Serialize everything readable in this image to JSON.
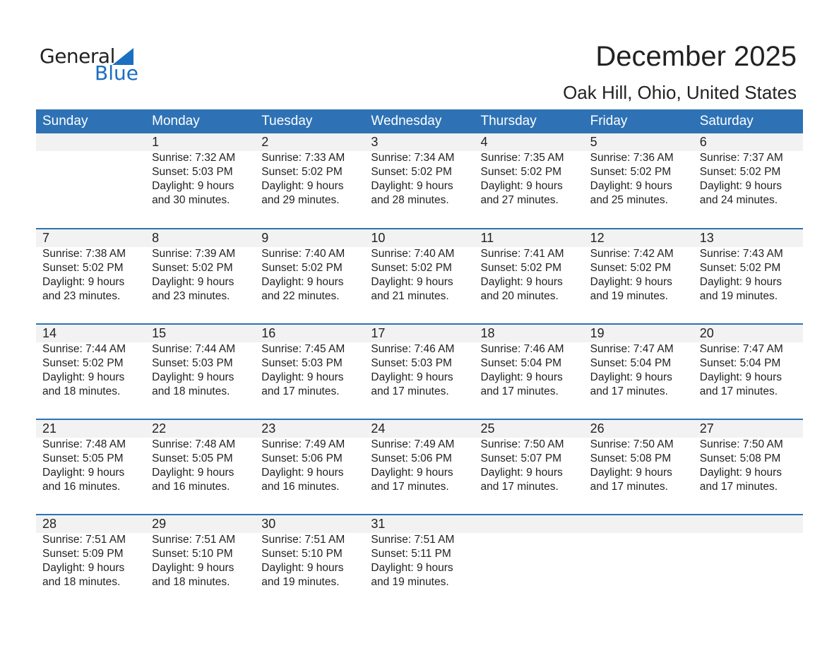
{
  "logo": {
    "line1": "General",
    "line2": "Blue"
  },
  "title": "December 2025",
  "subtitle": "Oak Hill, Ohio, United States",
  "colors": {
    "header": "#2e72b5",
    "logo": "#1a6fc0",
    "strip": "#f2f2f2"
  },
  "weekdays": [
    "Sunday",
    "Monday",
    "Tuesday",
    "Wednesday",
    "Thursday",
    "Friday",
    "Saturday"
  ],
  "weeks": [
    [
      null,
      {
        "day": "1",
        "sunrise": "Sunrise: 7:32 AM",
        "sunset": "Sunset: 5:03 PM",
        "daylight": "Daylight: 9 hours",
        "minutes": "and 30 minutes."
      },
      {
        "day": "2",
        "sunrise": "Sunrise: 7:33 AM",
        "sunset": "Sunset: 5:02 PM",
        "daylight": "Daylight: 9 hours",
        "minutes": "and 29 minutes."
      },
      {
        "day": "3",
        "sunrise": "Sunrise: 7:34 AM",
        "sunset": "Sunset: 5:02 PM",
        "daylight": "Daylight: 9 hours",
        "minutes": "and 28 minutes."
      },
      {
        "day": "4",
        "sunrise": "Sunrise: 7:35 AM",
        "sunset": "Sunset: 5:02 PM",
        "daylight": "Daylight: 9 hours",
        "minutes": "and 27 minutes."
      },
      {
        "day": "5",
        "sunrise": "Sunrise: 7:36 AM",
        "sunset": "Sunset: 5:02 PM",
        "daylight": "Daylight: 9 hours",
        "minutes": "and 25 minutes."
      },
      {
        "day": "6",
        "sunrise": "Sunrise: 7:37 AM",
        "sunset": "Sunset: 5:02 PM",
        "daylight": "Daylight: 9 hours",
        "minutes": "and 24 minutes."
      }
    ],
    [
      {
        "day": "7",
        "sunrise": "Sunrise: 7:38 AM",
        "sunset": "Sunset: 5:02 PM",
        "daylight": "Daylight: 9 hours",
        "minutes": "and 23 minutes."
      },
      {
        "day": "8",
        "sunrise": "Sunrise: 7:39 AM",
        "sunset": "Sunset: 5:02 PM",
        "daylight": "Daylight: 9 hours",
        "minutes": "and 23 minutes."
      },
      {
        "day": "9",
        "sunrise": "Sunrise: 7:40 AM",
        "sunset": "Sunset: 5:02 PM",
        "daylight": "Daylight: 9 hours",
        "minutes": "and 22 minutes."
      },
      {
        "day": "10",
        "sunrise": "Sunrise: 7:40 AM",
        "sunset": "Sunset: 5:02 PM",
        "daylight": "Daylight: 9 hours",
        "minutes": "and 21 minutes."
      },
      {
        "day": "11",
        "sunrise": "Sunrise: 7:41 AM",
        "sunset": "Sunset: 5:02 PM",
        "daylight": "Daylight: 9 hours",
        "minutes": "and 20 minutes."
      },
      {
        "day": "12",
        "sunrise": "Sunrise: 7:42 AM",
        "sunset": "Sunset: 5:02 PM",
        "daylight": "Daylight: 9 hours",
        "minutes": "and 19 minutes."
      },
      {
        "day": "13",
        "sunrise": "Sunrise: 7:43 AM",
        "sunset": "Sunset: 5:02 PM",
        "daylight": "Daylight: 9 hours",
        "minutes": "and 19 minutes."
      }
    ],
    [
      {
        "day": "14",
        "sunrise": "Sunrise: 7:44 AM",
        "sunset": "Sunset: 5:02 PM",
        "daylight": "Daylight: 9 hours",
        "minutes": "and 18 minutes."
      },
      {
        "day": "15",
        "sunrise": "Sunrise: 7:44 AM",
        "sunset": "Sunset: 5:03 PM",
        "daylight": "Daylight: 9 hours",
        "minutes": "and 18 minutes."
      },
      {
        "day": "16",
        "sunrise": "Sunrise: 7:45 AM",
        "sunset": "Sunset: 5:03 PM",
        "daylight": "Daylight: 9 hours",
        "minutes": "and 17 minutes."
      },
      {
        "day": "17",
        "sunrise": "Sunrise: 7:46 AM",
        "sunset": "Sunset: 5:03 PM",
        "daylight": "Daylight: 9 hours",
        "minutes": "and 17 minutes."
      },
      {
        "day": "18",
        "sunrise": "Sunrise: 7:46 AM",
        "sunset": "Sunset: 5:04 PM",
        "daylight": "Daylight: 9 hours",
        "minutes": "and 17 minutes."
      },
      {
        "day": "19",
        "sunrise": "Sunrise: 7:47 AM",
        "sunset": "Sunset: 5:04 PM",
        "daylight": "Daylight: 9 hours",
        "minutes": "and 17 minutes."
      },
      {
        "day": "20",
        "sunrise": "Sunrise: 7:47 AM",
        "sunset": "Sunset: 5:04 PM",
        "daylight": "Daylight: 9 hours",
        "minutes": "and 17 minutes."
      }
    ],
    [
      {
        "day": "21",
        "sunrise": "Sunrise: 7:48 AM",
        "sunset": "Sunset: 5:05 PM",
        "daylight": "Daylight: 9 hours",
        "minutes": "and 16 minutes."
      },
      {
        "day": "22",
        "sunrise": "Sunrise: 7:48 AM",
        "sunset": "Sunset: 5:05 PM",
        "daylight": "Daylight: 9 hours",
        "minutes": "and 16 minutes."
      },
      {
        "day": "23",
        "sunrise": "Sunrise: 7:49 AM",
        "sunset": "Sunset: 5:06 PM",
        "daylight": "Daylight: 9 hours",
        "minutes": "and 16 minutes."
      },
      {
        "day": "24",
        "sunrise": "Sunrise: 7:49 AM",
        "sunset": "Sunset: 5:06 PM",
        "daylight": "Daylight: 9 hours",
        "minutes": "and 17 minutes."
      },
      {
        "day": "25",
        "sunrise": "Sunrise: 7:50 AM",
        "sunset": "Sunset: 5:07 PM",
        "daylight": "Daylight: 9 hours",
        "minutes": "and 17 minutes."
      },
      {
        "day": "26",
        "sunrise": "Sunrise: 7:50 AM",
        "sunset": "Sunset: 5:08 PM",
        "daylight": "Daylight: 9 hours",
        "minutes": "and 17 minutes."
      },
      {
        "day": "27",
        "sunrise": "Sunrise: 7:50 AM",
        "sunset": "Sunset: 5:08 PM",
        "daylight": "Daylight: 9 hours",
        "minutes": "and 17 minutes."
      }
    ],
    [
      {
        "day": "28",
        "sunrise": "Sunrise: 7:51 AM",
        "sunset": "Sunset: 5:09 PM",
        "daylight": "Daylight: 9 hours",
        "minutes": "and 18 minutes."
      },
      {
        "day": "29",
        "sunrise": "Sunrise: 7:51 AM",
        "sunset": "Sunset: 5:10 PM",
        "daylight": "Daylight: 9 hours",
        "minutes": "and 18 minutes."
      },
      {
        "day": "30",
        "sunrise": "Sunrise: 7:51 AM",
        "sunset": "Sunset: 5:10 PM",
        "daylight": "Daylight: 9 hours",
        "minutes": "and 19 minutes."
      },
      {
        "day": "31",
        "sunrise": "Sunrise: 7:51 AM",
        "sunset": "Sunset: 5:11 PM",
        "daylight": "Daylight: 9 hours",
        "minutes": "and 19 minutes."
      },
      null,
      null,
      null
    ]
  ]
}
